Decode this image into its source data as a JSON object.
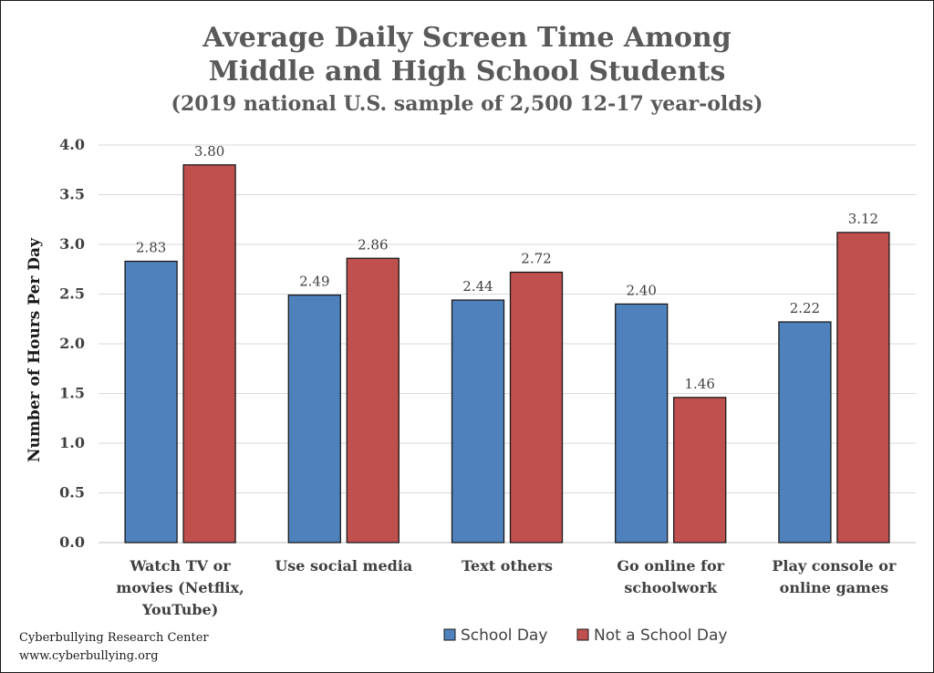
{
  "chart_data": {
    "type": "bar",
    "title_line1": "Average Daily Screen Time Among",
    "title_line2": "Middle and High School Students",
    "subtitle": "(2019 national U.S. sample of 2,500 12-17 year-olds)",
    "xlabel": "",
    "ylabel": "Number of Hours Per Day",
    "ylim": [
      0,
      4
    ],
    "yticks": [
      "0.0",
      "0.5",
      "1.0",
      "1.5",
      "2.0",
      "2.5",
      "3.0",
      "3.5",
      "4.0"
    ],
    "grid": true,
    "legend_position": "bottom",
    "categories": [
      [
        "Watch TV or",
        "movies (Netflix,",
        "YouTube)"
      ],
      [
        "Use social media"
      ],
      [
        "Text others"
      ],
      [
        "Go online for",
        "schoolwork"
      ],
      [
        "Play console or",
        "online games"
      ]
    ],
    "series": [
      {
        "name": "School Day",
        "color": "#4f81bd",
        "values": [
          2.83,
          2.49,
          2.44,
          2.4,
          2.22
        ],
        "labels": [
          "2.83",
          "2.49",
          "2.44",
          "2.40",
          "2.22"
        ]
      },
      {
        "name": "Not a School Day",
        "color": "#c0504d",
        "values": [
          3.8,
          2.86,
          2.72,
          1.46,
          3.12
        ],
        "labels": [
          "3.80",
          "2.86",
          "2.72",
          "1.46",
          "3.12"
        ]
      }
    ]
  },
  "footer": {
    "line1": "Cyberbullying Research Center",
    "line2": "www.cyberbullying.org"
  }
}
